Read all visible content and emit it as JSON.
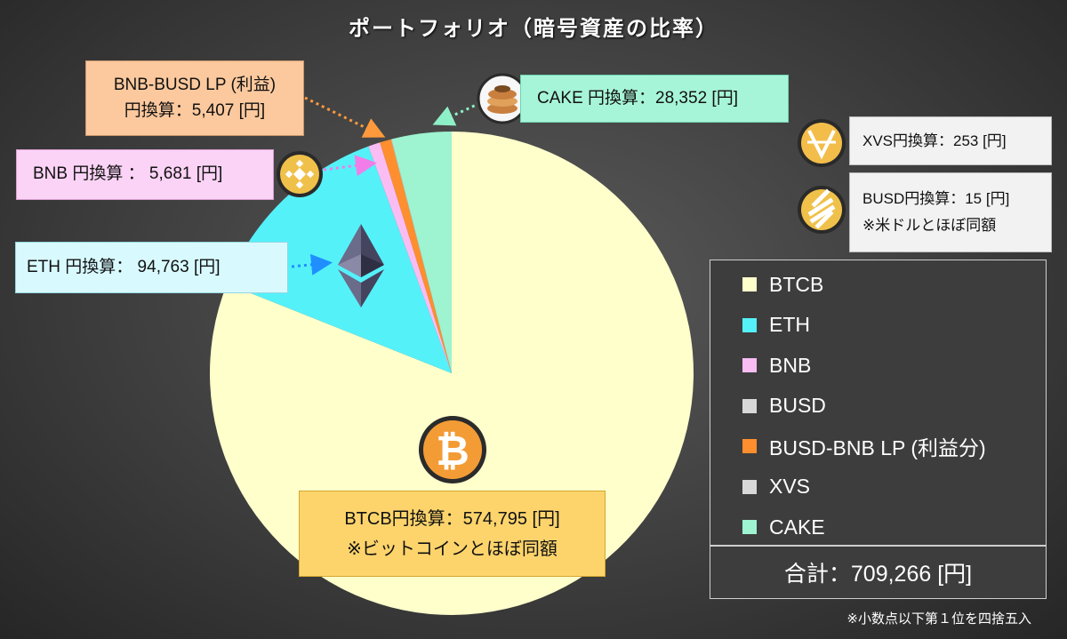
{
  "title": "ポートフォリオ（暗号資産の比率）",
  "chart_data": {
    "type": "pie",
    "title": "ポートフォリオ（暗号資産の比率）",
    "unit": "円",
    "slices": [
      {
        "name": "BTCB",
        "value": 574795,
        "color": "#ffffcc",
        "icon": "bitcoin-icon"
      },
      {
        "name": "ETH",
        "value": 94763,
        "color": "#55f1f9",
        "icon": "ethereum-icon"
      },
      {
        "name": "BNB",
        "value": 5681,
        "color": "#f9bdf4",
        "icon": "bnb-coin-icon"
      },
      {
        "name": "BUSD",
        "value": 15,
        "color": "#d8d8d8",
        "icon": "busd-coin-icon"
      },
      {
        "name": "BUSD-BNB LP (利益分)",
        "value": 5407,
        "color": "#ff8f2e",
        "icon": ""
      },
      {
        "name": "XVS",
        "value": 253,
        "color": "#d8d8d8",
        "icon": "xvs-coin-icon"
      },
      {
        "name": "CAKE",
        "value": 28352,
        "color": "#9ef3d0",
        "icon": "pancake-icon"
      }
    ],
    "legend": {
      "position": "right"
    }
  },
  "callouts": {
    "lp": {
      "line1": "BNB-BUSD LP (利益)",
      "line2": "円換算：5,407 [円]"
    },
    "bnb": {
      "text": "BNB 円換算 ：  5,681 [円]"
    },
    "eth": {
      "text": "ETH 円換算：  94,763 [円]"
    },
    "cake": {
      "text": "CAKE 円換算：28,352 [円]"
    },
    "xvs": {
      "text": "XVS円換算：253 [円]"
    },
    "busd": {
      "line1": "BUSD円換算：15 [円]",
      "line2": "※米ドルとほぼ同額"
    },
    "btcb": {
      "line1": "BTCB円換算：574,795 [円]",
      "line2": "※ビットコインとほぼ同額"
    }
  },
  "legend_labels": [
    "BTCB",
    "ETH",
    "BNB",
    "BUSD",
    "BUSD-BNB LP (利益分)",
    "XVS",
    "CAKE"
  ],
  "total": "合計：709,266 [円]",
  "footnote": "※小数点以下第１位を四捨五入"
}
